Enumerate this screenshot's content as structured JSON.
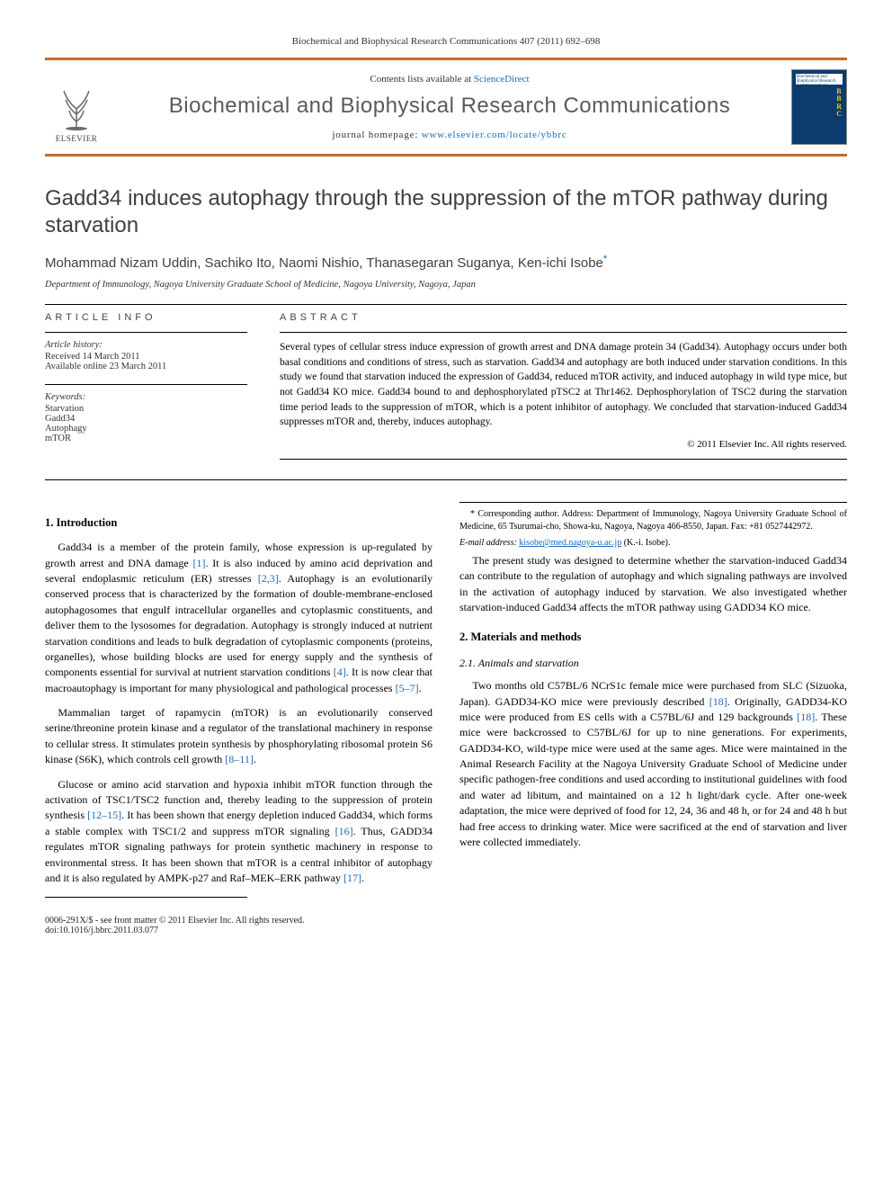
{
  "journal_ref": "Biochemical and Biophysical Research Communications 407 (2011) 692–698",
  "header": {
    "contents_prefix": "Contents lists available at ",
    "contents_link": "ScienceDirect",
    "journal_name": "Biochemical and Biophysical Research Communications",
    "homepage_prefix": "journal homepage: ",
    "homepage_url": "www.elsevier.com/locate/ybbrc",
    "publisher": "ELSEVIER",
    "cover_label": "Biochemical and Biophysical Research Communications",
    "cover_letters": "B\nB\nR\nC"
  },
  "title": "Gadd34 induces autophagy through the suppression of the mTOR pathway during starvation",
  "authors_html": "Mohammad Nizam Uddin, Sachiko Ito, Naomi Nishio, Thanasegaran Suganya, Ken-ichi Isobe",
  "author_mark": "*",
  "affiliation": "Department of Immunology, Nagoya University Graduate School of Medicine, Nagoya University, Nagoya, Japan",
  "article_info": {
    "heading": "ARTICLE INFO",
    "history_label": "Article history:",
    "received": "Received 14 March 2011",
    "online": "Available online 23 March 2011",
    "keywords_label": "Keywords:",
    "keywords": [
      "Starvation",
      "Gadd34",
      "Autophagy",
      "mTOR"
    ]
  },
  "abstract": {
    "heading": "ABSTRACT",
    "text": "Several types of cellular stress induce expression of growth arrest and DNA damage protein 34 (Gadd34). Autophagy occurs under both basal conditions and conditions of stress, such as starvation. Gadd34 and autophagy are both induced under starvation conditions. In this study we found that starvation induced the expression of Gadd34, reduced mTOR activity, and induced autophagy in wild type mice, but not Gadd34 KO mice. Gadd34 bound to and dephosphorylated pTSC2 at Thr1462. Dephosphorylation of TSC2 during the starvation time period leads to the suppression of mTOR, which is a potent inhibitor of autophagy. We concluded that starvation-induced Gadd34 suppresses mTOR and, thereby, induces autophagy.",
    "copyright": "© 2011 Elsevier Inc. All rights reserved."
  },
  "sections": {
    "s1_title": "1. Introduction",
    "s1_p1": "Gadd34 is a member of the protein family, whose expression is up-regulated by growth arrest and DNA damage [1]. It is also induced by amino acid deprivation and several endoplasmic reticulum (ER) stresses [2,3]. Autophagy is an evolutionarily conserved process that is characterized by the formation of double-membrane-enclosed autophagosomes that engulf intracellular organelles and cytoplasmic constituents, and deliver them to the lysosomes for degradation. Autophagy is strongly induced at nutrient starvation conditions and leads to bulk degradation of cytoplasmic components (proteins, organelles), whose building blocks are used for energy supply and the synthesis of components essential for survival at nutrient starvation conditions [4]. It is now clear that macroautophagy is important for many physiological and pathological processes [5–7].",
    "s1_p2": "Mammalian target of rapamycin (mTOR) is an evolutionarily conserved serine/threonine protein kinase and a regulator of the translational machinery in response to cellular stress. It stimulates protein synthesis by phosphorylating ribosomal protein S6 kinase (S6K), which controls cell growth [8–11].",
    "s1_p3": "Glucose or amino acid starvation and hypoxia inhibit mTOR function through the activation of TSC1/TSC2 function and, thereby leading to the suppression of protein synthesis [12–15]. It has been shown that energy depletion induced Gadd34, which forms a stable complex with TSC1/2 and suppress mTOR signaling [16]. Thus, GADD34 regulates mTOR signaling pathways for protein synthetic machinery in response to environmental stress. It has been shown that mTOR is a central inhibitor of autophagy and it is also regulated by AMPK-p27 and Raf–MEK–ERK pathway [17].",
    "s1_p4": "The present study was designed to determine whether the starvation-induced Gadd34 can contribute to the regulation of autophagy and which signaling pathways are involved in the activation of autophagy induced by starvation. We also investigated whether starvation-induced Gadd34 affects the mTOR pathway using GADD34 KO mice.",
    "s2_title": "2. Materials and methods",
    "s2_1_title": "2.1. Animals and starvation",
    "s2_1_p1": "Two months old C57BL/6 NCrS1c female mice were purchased from SLC (Sizuoka, Japan). GADD34-KO mice were previously described [18]. Originally, GADD34-KO mice were produced from ES cells with a C57BL/6J and 129 backgrounds [18]. These mice were backcrossed to C57BL/6J for up to nine generations. For experiments, GADD34-KO, wild-type mice were used at the same ages. Mice were maintained in the Animal Research Facility at the Nagoya University Graduate School of Medicine under specific pathogen-free conditions and used according to institutional guidelines with food and water ad libitum, and maintained on a 12 h light/dark cycle. After one-week adaptation, the mice were deprived of food for 12, 24, 36 and 48 h, or for 24 and 48 h but had free access to drinking water. Mice were sacrificed at the end of starvation and liver were collected immediately."
  },
  "footnote": {
    "corr_label": "* Corresponding author. Address: Department of Immunology, Nagoya University Graduate School of Medicine, 65 Tsurumai-cho, Showa-ku, Nagoya, Nagoya 466-8550, Japan. Fax: +81 0527442972.",
    "email_label": "E-mail address:",
    "email": "kisobe@med.nagoya-u.ac.jp",
    "email_author": "(K.-i. Isobe)."
  },
  "bottom": {
    "left1": "0006-291X/$ - see front matter © 2011 Elsevier Inc. All rights reserved.",
    "left2": "doi:10.1016/j.bbrc.2011.03.077"
  },
  "colors": {
    "accent": "#c76b29",
    "link": "#1a6bb8",
    "journal_cover": "#0b3c6d",
    "cover_letters": "#f2c11a"
  }
}
